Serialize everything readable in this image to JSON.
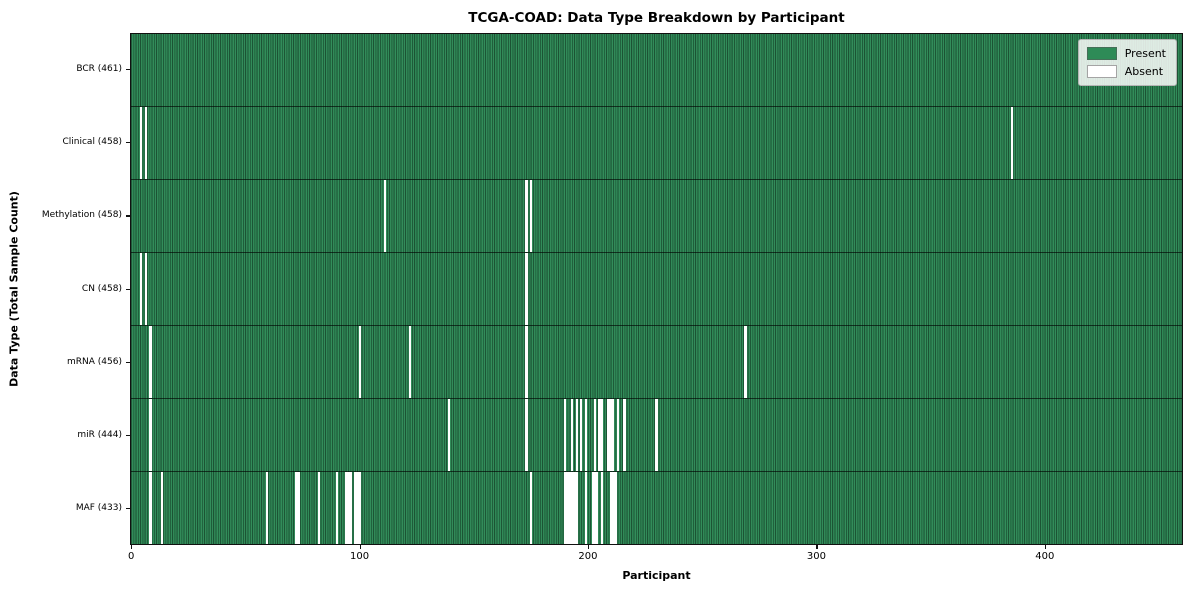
{
  "figure": {
    "title": "TCGA-COAD: Data Type Breakdown by Participant",
    "xlabel": "Participant",
    "ylabel": "Data Type (Total Sample Count)"
  },
  "chart_data": {
    "type": "heatmap",
    "title": "TCGA-COAD: Data Type Breakdown by Participant",
    "xlabel": "Participant",
    "ylabel": "Data Type (Total Sample Count)",
    "x_ticks": [
      0,
      100,
      200,
      300,
      400
    ],
    "xlim": [
      -0.5,
      460.5
    ],
    "n_participants": 461,
    "grid": false,
    "colors": {
      "present": "#2e8b57",
      "absent": "#ffffff"
    },
    "legend": {
      "position": "upper right",
      "entries": [
        {
          "label": "Present",
          "color": "#2e8b57"
        },
        {
          "label": "Absent",
          "color": "#ffffff"
        }
      ]
    },
    "rows": [
      {
        "name": "BCR",
        "label": "BCR (461)",
        "total_samples": 461,
        "absent_participants": []
      },
      {
        "name": "Clinical",
        "label": "Clinical (458)",
        "total_samples": 458,
        "absent_participants": [
          4,
          6,
          386
        ]
      },
      {
        "name": "Methylation",
        "label": "Methylation (458)",
        "total_samples": 458,
        "absent_participants": [
          111,
          173,
          175
        ]
      },
      {
        "name": "CN",
        "label": "CN (458)",
        "total_samples": 458,
        "absent_participants": [
          4,
          6,
          173
        ]
      },
      {
        "name": "mRNA",
        "label": "mRNA (456)",
        "total_samples": 456,
        "absent_participants": [
          8,
          100,
          122,
          173,
          269
        ]
      },
      {
        "name": "miR",
        "label": "miR (444)",
        "total_samples": 444,
        "absent_participants": [
          8,
          139,
          173,
          190,
          193,
          195,
          197,
          199,
          203,
          205,
          206,
          209,
          210,
          211,
          213,
          216,
          230
        ]
      },
      {
        "name": "MAF",
        "label": "MAF (433)",
        "total_samples": 433,
        "absent_participants": [
          8,
          13,
          59,
          72,
          73,
          82,
          90,
          94,
          95,
          96,
          98,
          99,
          100,
          175,
          190,
          191,
          192,
          193,
          194,
          195,
          199,
          202,
          203,
          204,
          206,
          210,
          211,
          212
        ]
      }
    ]
  }
}
